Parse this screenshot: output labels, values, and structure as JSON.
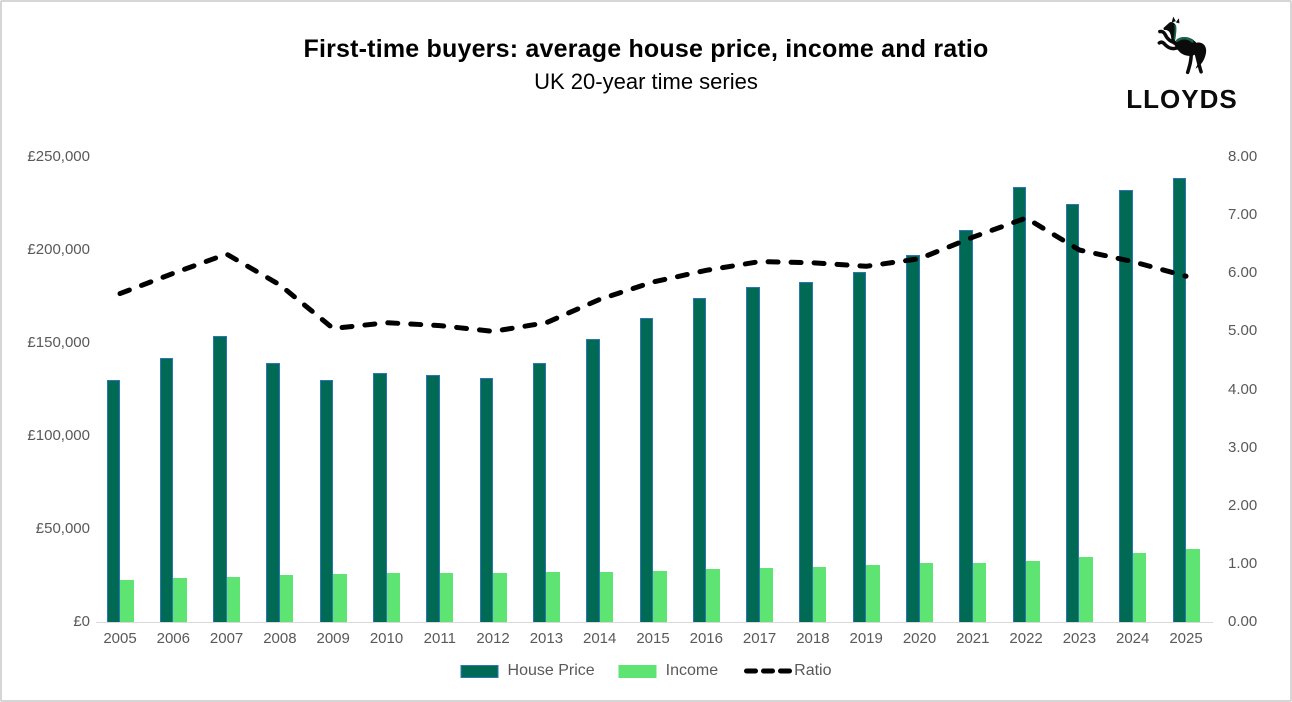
{
  "header": {
    "title": "First-time buyers: average house price, income and ratio",
    "subtitle": "UK 20-year time series"
  },
  "logo": {
    "wordmark": "LLOYDS",
    "horse_icon": "lloyds-black-horse",
    "black": "#0b0b0b",
    "green_accent": "#17654F"
  },
  "colors": {
    "house_price_bar": "#006A54",
    "bar_border_blue": "#2E75B6",
    "income_bar": "#5EE472",
    "ratio_line": "#000000",
    "axis_text": "#595959",
    "axis_line": "#D9D9D9",
    "frame_border": "#D6D6D6"
  },
  "chart_data": {
    "type": "bar",
    "subtype": "combo-bar-line-dual-axis",
    "title": "First-time buyers: average house price, income and ratio",
    "subtitle": "UK 20-year time series",
    "grid": false,
    "legend_position": "bottom",
    "categories": [
      "2005",
      "2006",
      "2007",
      "2008",
      "2009",
      "2010",
      "2011",
      "2012",
      "2013",
      "2014",
      "2015",
      "2016",
      "2017",
      "2018",
      "2019",
      "2020",
      "2021",
      "2022",
      "2023",
      "2024",
      "2025"
    ],
    "series": [
      {
        "name": "House Price",
        "type": "bar",
        "axis": "left",
        "color": "#006A54",
        "border_color": "#2E75B6",
        "values": [
          130000,
          142000,
          154000,
          139000,
          130000,
          134000,
          133000,
          131000,
          139500,
          152000,
          163500,
          174000,
          180000,
          183000,
          188000,
          197500,
          211000,
          234000,
          225000,
          232500,
          238500
        ]
      },
      {
        "name": "Income",
        "type": "bar",
        "axis": "left",
        "color": "#5EE472",
        "border_color": "",
        "values": [
          22600,
          23700,
          24400,
          25400,
          26000,
          26100,
          26200,
          26300,
          26700,
          27000,
          27400,
          28500,
          28800,
          29600,
          30800,
          31500,
          31800,
          33000,
          35100,
          37300,
          39400
        ]
      },
      {
        "name": "Ratio",
        "type": "line",
        "axis": "right",
        "color": "#000000",
        "style": "dashed",
        "values": [
          5.65,
          6.0,
          6.33,
          5.8,
          5.05,
          5.15,
          5.1,
          5.0,
          5.15,
          5.55,
          5.85,
          6.05,
          6.2,
          6.18,
          6.12,
          6.25,
          6.62,
          6.95,
          6.4,
          6.2,
          5.95
        ]
      }
    ],
    "left_axis": {
      "min": 0,
      "max": 250000,
      "tick_labels": [
        "£0",
        "£50,000",
        "£100,000",
        "£150,000",
        "£200,000",
        "£250,000"
      ]
    },
    "right_axis": {
      "min": 0,
      "max": 8,
      "tick_labels": [
        "0.00",
        "1.00",
        "2.00",
        "3.00",
        "4.00",
        "5.00",
        "6.00",
        "7.00",
        "8.00"
      ]
    }
  }
}
